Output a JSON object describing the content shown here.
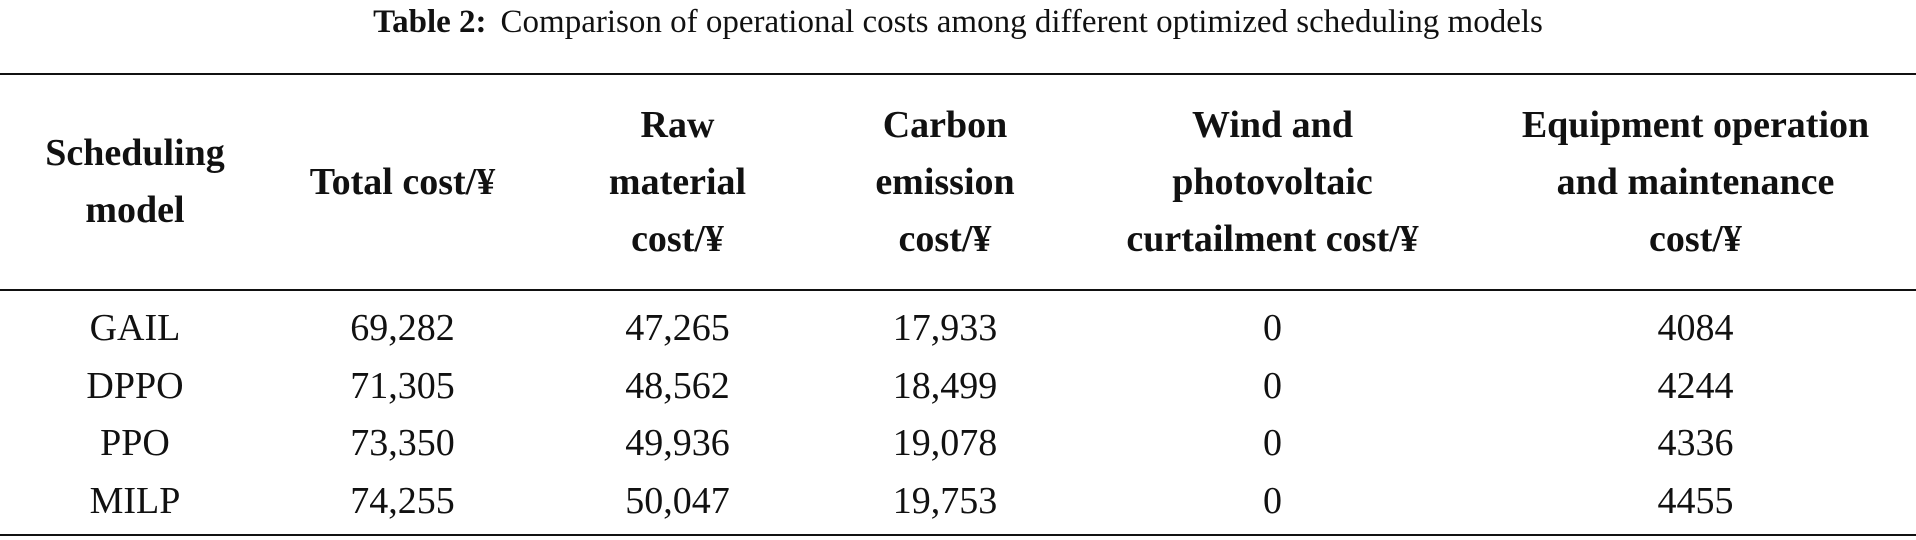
{
  "caption": {
    "label": "Table 2:",
    "text": "Comparison of operational costs among different optimized scheduling models"
  },
  "table": {
    "headers": [
      [
        "Scheduling",
        "model"
      ],
      [
        "Total cost/¥"
      ],
      [
        "Raw",
        "material",
        "cost/¥"
      ],
      [
        "Carbon",
        "emission",
        "cost/¥"
      ],
      [
        "Wind and",
        "photovoltaic",
        "curtailment cost/¥"
      ],
      [
        "Equipment operation",
        "and maintenance",
        "cost/¥"
      ]
    ],
    "rows": [
      [
        "GAIL",
        "69,282",
        "47,265",
        "17,933",
        "0",
        "4084"
      ],
      [
        "DPPO",
        "71,305",
        "48,562",
        "18,499",
        "0",
        "4244"
      ],
      [
        "PPO",
        "73,350",
        "49,936",
        "19,078",
        "0",
        "4336"
      ],
      [
        "MILP",
        "74,255",
        "50,047",
        "19,753",
        "0",
        "4455"
      ]
    ]
  }
}
